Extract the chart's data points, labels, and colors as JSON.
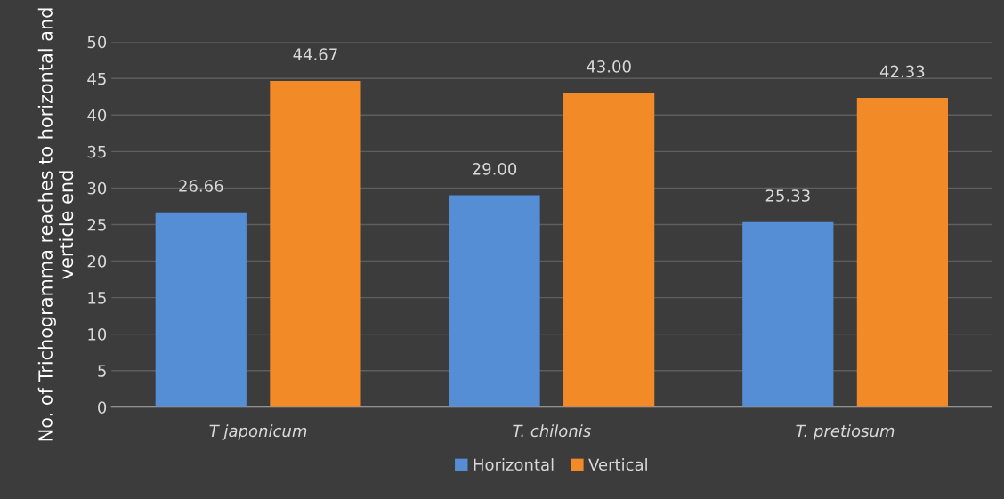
{
  "chart_data": {
    "type": "bar",
    "ylabel": "No. of Trichogramma reaches to horizontal and verticle end",
    "categories": [
      "T japonicum",
      "T. chilonis",
      "T. pretiosum"
    ],
    "series": [
      {
        "name": "Horizontal",
        "color": "#558ed5",
        "values": [
          26.66,
          29.0,
          25.33
        ],
        "value_labels": [
          "26.66",
          "29.00",
          "25.33"
        ]
      },
      {
        "name": "Vertical",
        "color": "#f28a28",
        "values": [
          44.67,
          43.0,
          42.33
        ],
        "value_labels": [
          "44.67",
          "43.00",
          "42.33"
        ]
      }
    ],
    "ylim": [
      0,
      50
    ],
    "yticks": [
      0,
      5,
      10,
      15,
      20,
      25,
      30,
      35,
      40,
      45,
      50
    ],
    "grid": "y",
    "legend": "bottom"
  }
}
